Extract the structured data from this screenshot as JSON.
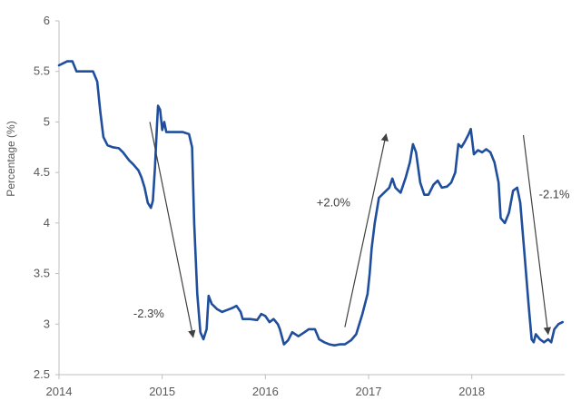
{
  "chart_data": {
    "type": "line",
    "title": "",
    "xlabel": "",
    "ylabel": "Percentage (%)",
    "xlim": [
      2014,
      2018.9
    ],
    "ylim": [
      2.5,
      6
    ],
    "x_ticks": [
      2014,
      2015,
      2016,
      2017,
      2018
    ],
    "x_tick_labels": [
      "2014",
      "2015",
      "2016",
      "2017",
      "2018"
    ],
    "y_ticks": [
      2.5,
      3,
      3.5,
      4,
      4.5,
      5,
      5.5,
      6
    ],
    "y_tick_labels": [
      "2.5",
      "3",
      "3.5",
      "4",
      "4.5",
      "5",
      "5.5",
      "6"
    ],
    "grid": false,
    "legend": "none",
    "colors": {
      "series": "#1f4e9c",
      "arrow": "#404040",
      "axis": "#bfbfbf",
      "text": "#595959"
    },
    "series": [
      {
        "points": [
          [
            2014.0,
            5.56
          ],
          [
            2014.04,
            5.58
          ],
          [
            2014.08,
            5.6
          ],
          [
            2014.13,
            5.6
          ],
          [
            2014.17,
            5.5
          ],
          [
            2014.33,
            5.5
          ],
          [
            2014.37,
            5.4
          ],
          [
            2014.4,
            5.1
          ],
          [
            2014.43,
            4.85
          ],
          [
            2014.47,
            4.77
          ],
          [
            2014.52,
            4.75
          ],
          [
            2014.58,
            4.74
          ],
          [
            2014.62,
            4.7
          ],
          [
            2014.68,
            4.62
          ],
          [
            2014.72,
            4.58
          ],
          [
            2014.77,
            4.52
          ],
          [
            2014.8,
            4.45
          ],
          [
            2014.83,
            4.35
          ],
          [
            2014.86,
            4.2
          ],
          [
            2014.89,
            4.15
          ],
          [
            2014.91,
            4.22
          ],
          [
            2014.93,
            4.55
          ],
          [
            2014.95,
            4.98
          ],
          [
            2014.96,
            5.16
          ],
          [
            2014.98,
            5.12
          ],
          [
            2015.0,
            4.92
          ],
          [
            2015.02,
            5.0
          ],
          [
            2015.04,
            4.9
          ],
          [
            2015.1,
            4.9
          ],
          [
            2015.2,
            4.9
          ],
          [
            2015.26,
            4.88
          ],
          [
            2015.29,
            4.75
          ],
          [
            2015.31,
            4.0
          ],
          [
            2015.34,
            3.3
          ],
          [
            2015.37,
            2.92
          ],
          [
            2015.4,
            2.85
          ],
          [
            2015.43,
            2.95
          ],
          [
            2015.45,
            3.28
          ],
          [
            2015.48,
            3.2
          ],
          [
            2015.53,
            3.15
          ],
          [
            2015.58,
            3.12
          ],
          [
            2015.63,
            3.14
          ],
          [
            2015.68,
            3.16
          ],
          [
            2015.72,
            3.18
          ],
          [
            2015.76,
            3.12
          ],
          [
            2015.78,
            3.05
          ],
          [
            2015.85,
            3.05
          ],
          [
            2015.92,
            3.04
          ],
          [
            2015.96,
            3.1
          ],
          [
            2016.0,
            3.08
          ],
          [
            2016.04,
            3.02
          ],
          [
            2016.08,
            3.05
          ],
          [
            2016.12,
            3.0
          ],
          [
            2016.14,
            2.95
          ],
          [
            2016.18,
            2.8
          ],
          [
            2016.22,
            2.84
          ],
          [
            2016.26,
            2.92
          ],
          [
            2016.32,
            2.88
          ],
          [
            2016.38,
            2.92
          ],
          [
            2016.42,
            2.95
          ],
          [
            2016.48,
            2.95
          ],
          [
            2016.52,
            2.85
          ],
          [
            2016.57,
            2.82
          ],
          [
            2016.62,
            2.8
          ],
          [
            2016.67,
            2.79
          ],
          [
            2016.72,
            2.8
          ],
          [
            2016.77,
            2.8
          ],
          [
            2016.83,
            2.84
          ],
          [
            2016.88,
            2.9
          ],
          [
            2016.94,
            3.1
          ],
          [
            2016.99,
            3.3
          ],
          [
            2017.01,
            3.5
          ],
          [
            2017.03,
            3.75
          ],
          [
            2017.06,
            4.0
          ],
          [
            2017.1,
            4.25
          ],
          [
            2017.15,
            4.3
          ],
          [
            2017.2,
            4.35
          ],
          [
            2017.23,
            4.44
          ],
          [
            2017.26,
            4.35
          ],
          [
            2017.31,
            4.3
          ],
          [
            2017.36,
            4.45
          ],
          [
            2017.4,
            4.6
          ],
          [
            2017.43,
            4.78
          ],
          [
            2017.46,
            4.7
          ],
          [
            2017.5,
            4.4
          ],
          [
            2017.54,
            4.28
          ],
          [
            2017.58,
            4.28
          ],
          [
            2017.63,
            4.38
          ],
          [
            2017.67,
            4.42
          ],
          [
            2017.71,
            4.35
          ],
          [
            2017.76,
            4.36
          ],
          [
            2017.8,
            4.4
          ],
          [
            2017.84,
            4.5
          ],
          [
            2017.87,
            4.78
          ],
          [
            2017.9,
            4.75
          ],
          [
            2017.93,
            4.8
          ],
          [
            2017.97,
            4.88
          ],
          [
            2017.99,
            4.93
          ],
          [
            2018.02,
            4.68
          ],
          [
            2018.06,
            4.72
          ],
          [
            2018.1,
            4.7
          ],
          [
            2018.14,
            4.73
          ],
          [
            2018.18,
            4.7
          ],
          [
            2018.22,
            4.6
          ],
          [
            2018.26,
            4.4
          ],
          [
            2018.28,
            4.05
          ],
          [
            2018.32,
            4.0
          ],
          [
            2018.36,
            4.1
          ],
          [
            2018.4,
            4.32
          ],
          [
            2018.44,
            4.35
          ],
          [
            2018.47,
            4.2
          ],
          [
            2018.51,
            3.7
          ],
          [
            2018.55,
            3.2
          ],
          [
            2018.58,
            2.85
          ],
          [
            2018.6,
            2.82
          ],
          [
            2018.62,
            2.9
          ],
          [
            2018.66,
            2.85
          ],
          [
            2018.7,
            2.82
          ],
          [
            2018.74,
            2.85
          ],
          [
            2018.77,
            2.82
          ],
          [
            2018.8,
            2.95
          ],
          [
            2018.84,
            3.0
          ],
          [
            2018.88,
            3.02
          ]
        ]
      }
    ],
    "annotations": [
      {
        "text": "-2.3%",
        "label_at": [
          2014.87,
          3.1
        ],
        "arrow_from": [
          2014.88,
          5.0
        ],
        "arrow_to": [
          2015.3,
          2.87
        ]
      },
      {
        "text": "+2.0%",
        "label_at": [
          2016.66,
          4.2
        ],
        "arrow_from": [
          2016.77,
          2.97
        ],
        "arrow_to": [
          2017.17,
          4.88
        ]
      },
      {
        "text": "-2.1%",
        "label_at": [
          2018.8,
          4.28
        ],
        "arrow_from": [
          2018.5,
          4.87
        ],
        "arrow_to": [
          2018.74,
          2.9
        ]
      }
    ]
  }
}
